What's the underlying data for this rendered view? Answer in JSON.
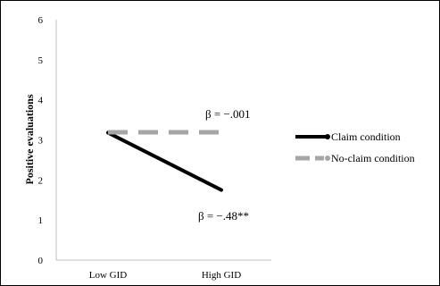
{
  "chart_data": {
    "type": "line",
    "title": "",
    "xlabel": "",
    "ylabel": "Positive evaluations",
    "ylim": [
      0,
      6
    ],
    "yticks": [
      0,
      1,
      2,
      3,
      4,
      5,
      6
    ],
    "grid": false,
    "legend_position": "right",
    "categories": [
      "Low GID",
      "High GID"
    ],
    "series": [
      {
        "name": "Claim condition",
        "values": [
          3.18,
          1.75
        ],
        "color": "#000000",
        "style": "solid"
      },
      {
        "name": "No-claim condition",
        "values": [
          3.19,
          3.19
        ],
        "color": "#a6a6a6",
        "style": "dashed"
      }
    ],
    "annotations": [
      {
        "text": "β = −.001",
        "series": "No-claim condition"
      },
      {
        "text": "β = −.48**",
        "series": "Claim condition"
      }
    ]
  }
}
